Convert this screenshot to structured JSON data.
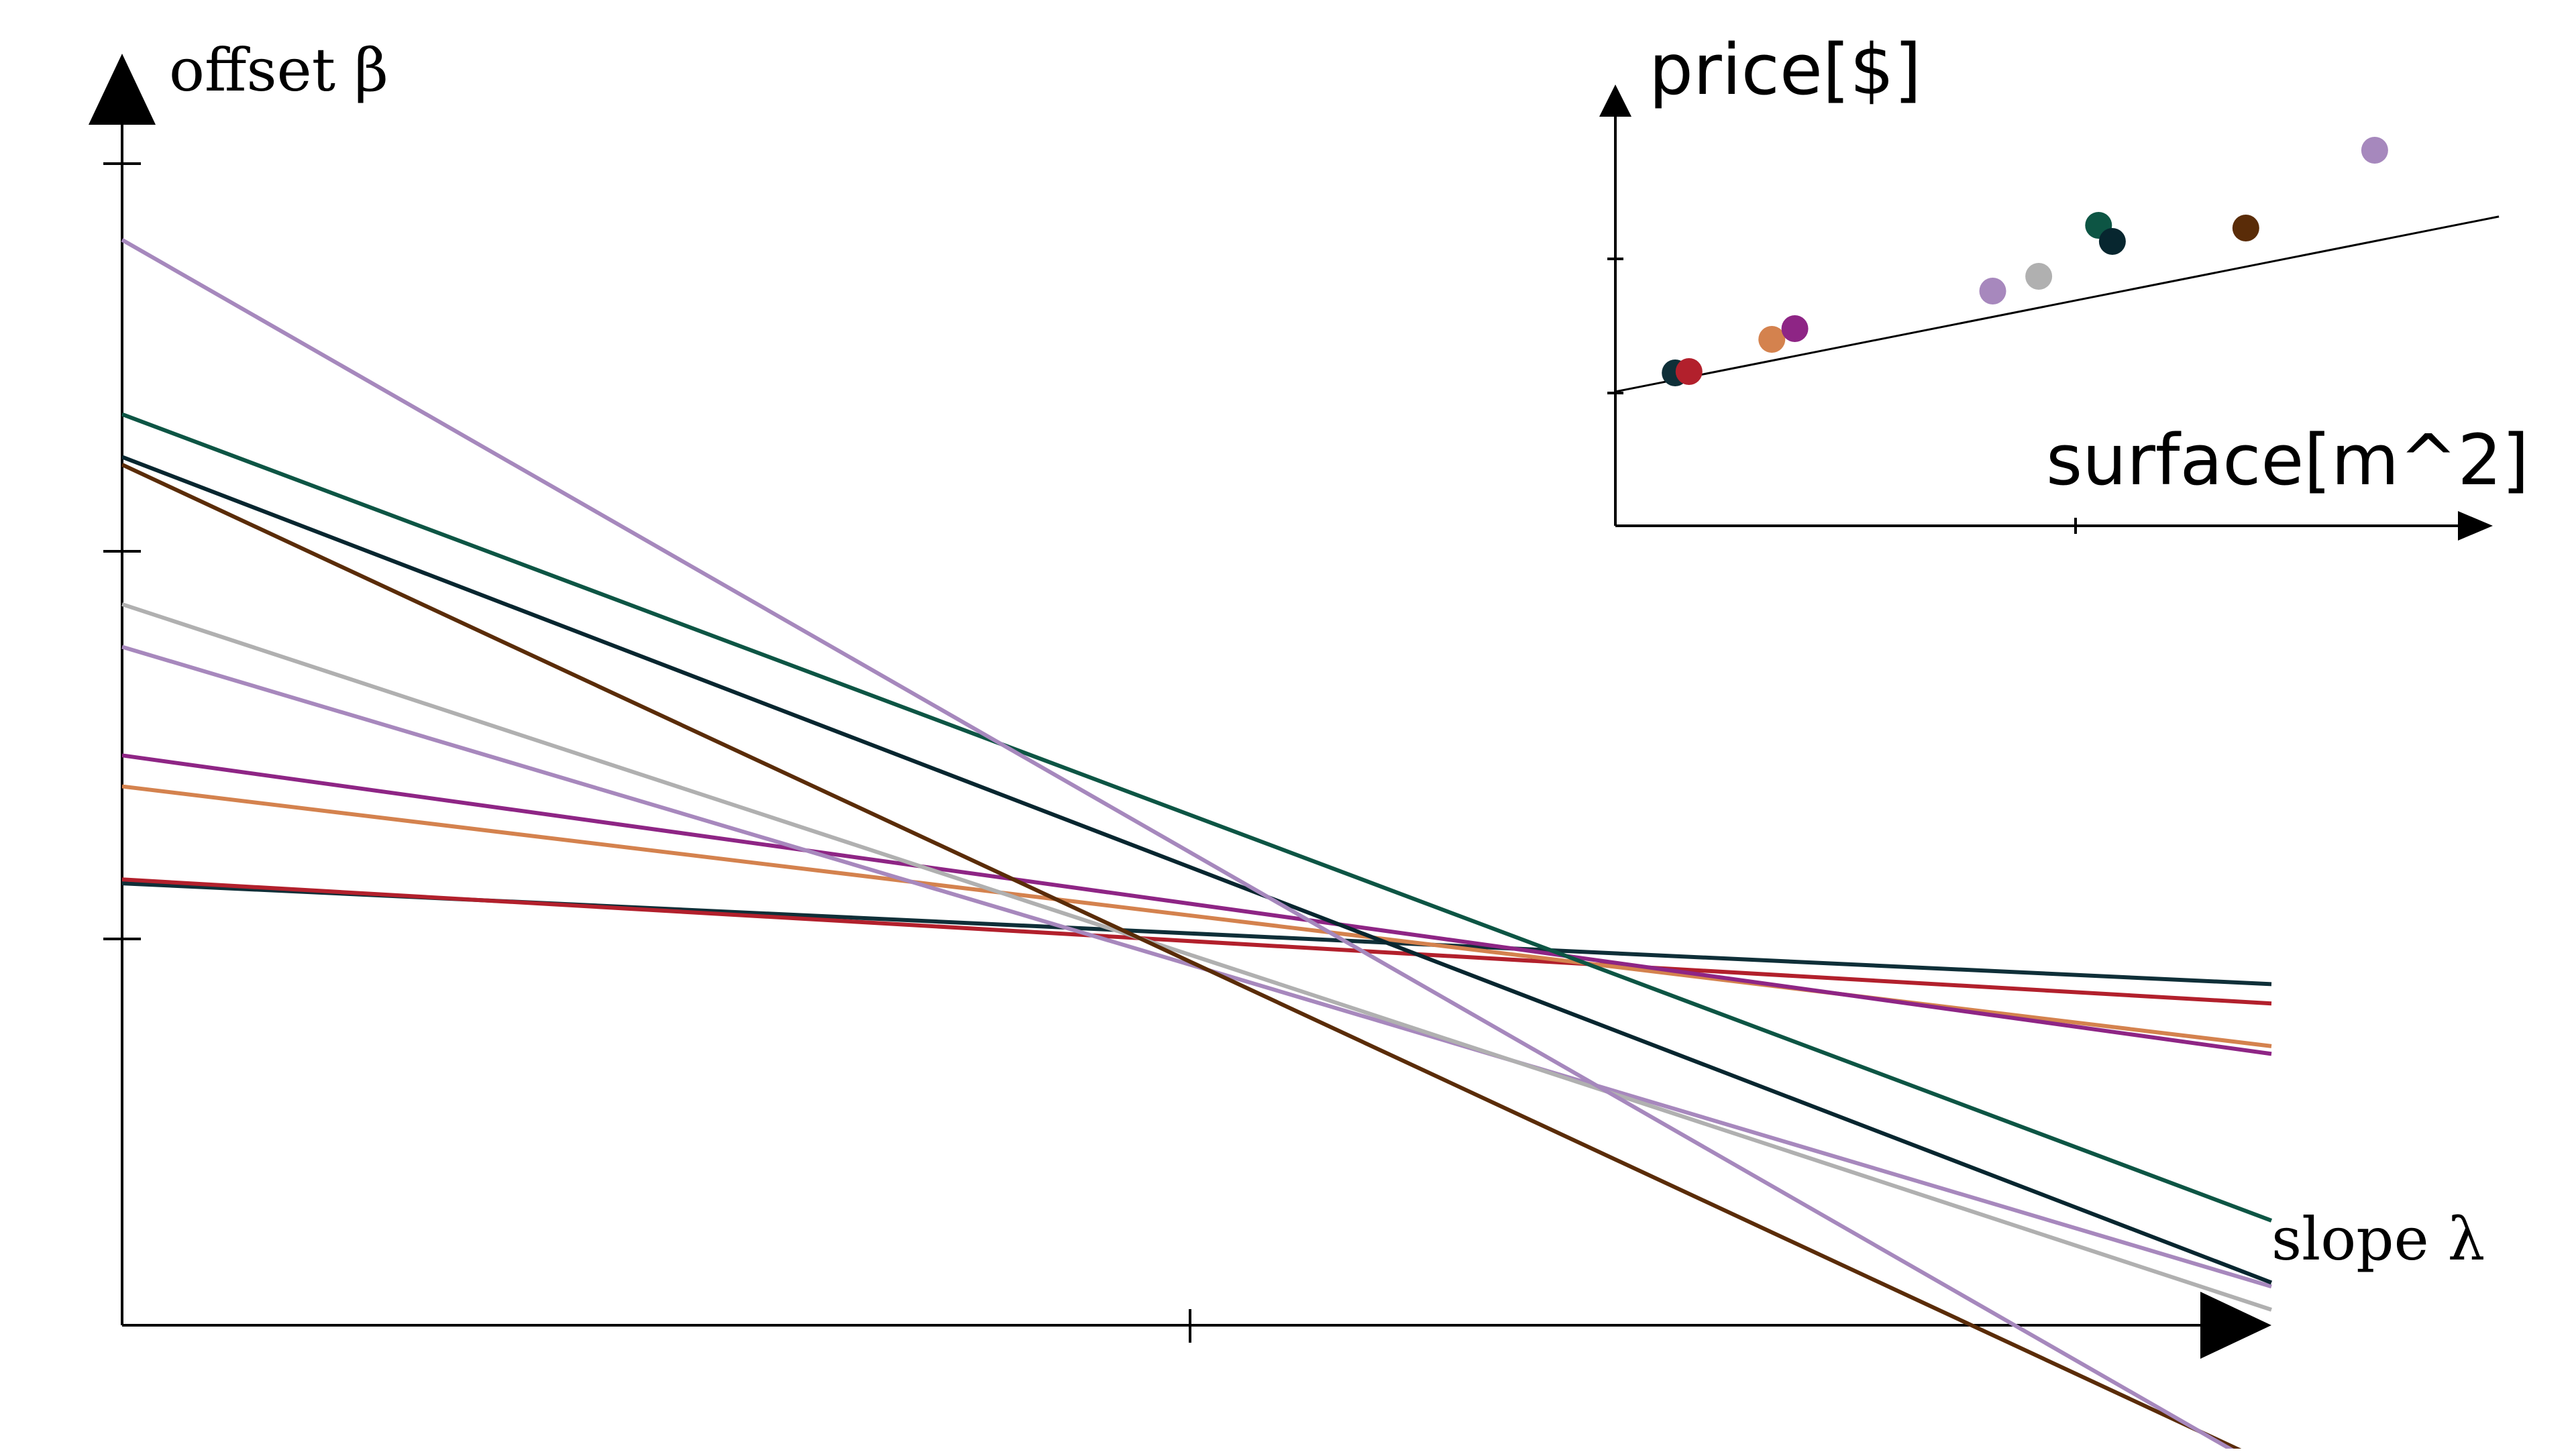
{
  "chart_data": [
    {
      "type": "line",
      "xlabel": "slope λ",
      "ylabel": "offset β",
      "lines": [
        {
          "color": "#0f2f38",
          "x_start": 0,
          "y_start": 1.14,
          "x_end": 2,
          "y_end": 0.88
        },
        {
          "color": "#b2202c",
          "x_start": 0,
          "y_start": 1.15,
          "x_end": 2,
          "y_end": 0.83
        },
        {
          "color": "#d4824e",
          "x_start": 0,
          "y_start": 1.39,
          "x_end": 2,
          "y_end": 0.72
        },
        {
          "color": "#8e2585",
          "x_start": 0,
          "y_start": 1.47,
          "x_end": 2,
          "y_end": 0.7
        },
        {
          "color": "#a788bd",
          "x_start": 0,
          "y_start": 1.75,
          "x_end": 2,
          "y_end": 0.1
        },
        {
          "color": "#b0b0b0",
          "x_start": 0,
          "y_start": 1.86,
          "x_end": 2,
          "y_end": 0.04
        },
        {
          "color": "#07262f",
          "x_start": 0,
          "y_start": 2.24,
          "x_end": 2,
          "y_end": 0.11
        },
        {
          "color": "#0d5544",
          "x_start": 0,
          "y_start": 2.35,
          "x_end": 2,
          "y_end": 0.27
        },
        {
          "color": "#5a2c08",
          "x_start": 0,
          "y_start": 2.22,
          "x_end": 2,
          "y_end": -0.36
        },
        {
          "color": "#a688bd",
          "x_start": 0,
          "y_start": 2.8,
          "x_end": 2,
          "y_end": -0.38
        }
      ]
    },
    {
      "type": "scatter",
      "xlabel": "surface[m^2]",
      "ylabel": "price[$]",
      "x_ticks": [
        1
      ],
      "y_ticks": [
        1,
        2
      ],
      "points": [
        {
          "x": 0.13,
          "y": 1.14,
          "color": "#0f2f38"
        },
        {
          "x": 0.16,
          "y": 1.15,
          "color": "#b2202c"
        },
        {
          "x": 0.34,
          "y": 1.39,
          "color": "#d4824e"
        },
        {
          "x": 0.39,
          "y": 1.47,
          "color": "#8e2585"
        },
        {
          "x": 0.82,
          "y": 1.75,
          "color": "#a788bd"
        },
        {
          "x": 0.92,
          "y": 1.86,
          "color": "#b0b0b0"
        },
        {
          "x": 1.05,
          "y": 2.24,
          "color": "#0d5544"
        },
        {
          "x": 1.08,
          "y": 2.12,
          "color": "#07262f"
        },
        {
          "x": 1.37,
          "y": 2.22,
          "color": "#5a2c08"
        },
        {
          "x": 1.65,
          "y": 2.8,
          "color": "#a688bd"
        }
      ],
      "fit_line": {
        "color": "#000000",
        "slope": 0.68,
        "intercept": 1.0,
        "x_min": 0,
        "x_max": 1.92
      }
    }
  ]
}
